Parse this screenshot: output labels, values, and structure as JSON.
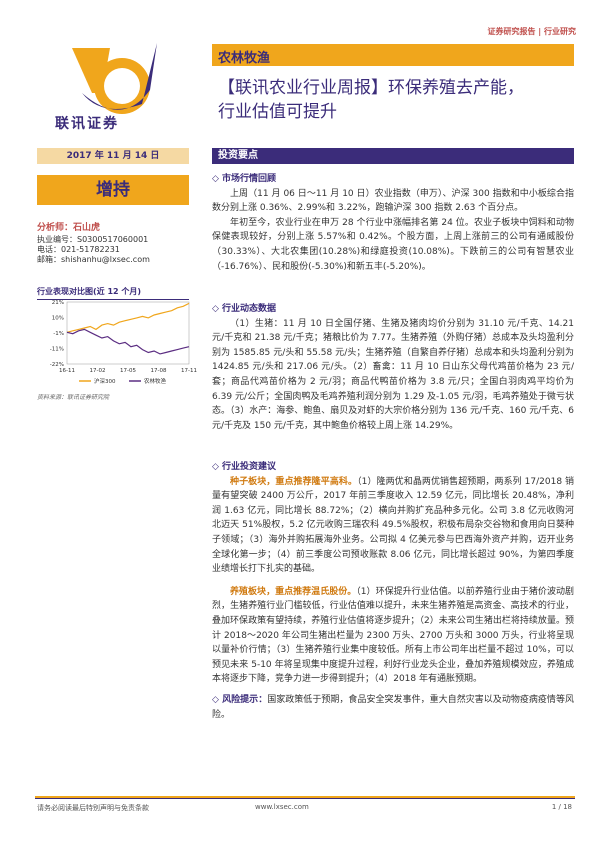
{
  "header": {
    "tag": "证券研究报告 | 行业研究",
    "sector": "农林牧渔",
    "title_line1": "【联讯农业行业周报】环保养殖去产能，",
    "title_line2": "行业估值可提升"
  },
  "brand": {
    "name": "联讯证券"
  },
  "sidebar": {
    "date": "2017 年 11 月 14 日",
    "rating": "增持",
    "analyst": "分析师：石山虎",
    "cert": "执业编号：S0300517060001",
    "phone": "电话：021-51782231",
    "email": "邮箱：shishanhu@lxsec.com",
    "chart_title": "行业表现对比图(近 12 个月)",
    "source": "资料来源：联讯证券研究院"
  },
  "chart_data": {
    "type": "line",
    "x_ticks": [
      "16-11",
      "17-02",
      "17-05",
      "17-08",
      "17-11"
    ],
    "y_ticks": [
      "21%",
      "10%",
      "-1%",
      "-11%",
      "-22%"
    ],
    "ylim": [
      -22,
      21
    ],
    "series": [
      {
        "name": "沪深300",
        "color": "#f0a61c",
        "values": [
          0,
          1,
          2,
          3,
          4,
          2,
          5,
          6,
          5,
          7,
          8,
          9,
          10,
          11,
          10,
          12,
          13,
          14,
          15,
          17,
          18,
          20
        ]
      },
      {
        "name": "农林牧渔",
        "color": "#5b2d82",
        "values": [
          0,
          -1,
          1,
          2,
          0,
          -2,
          -4,
          -3,
          -6,
          -8,
          -7,
          -10,
          -9,
          -12,
          -14,
          -13,
          -15,
          -14,
          -13,
          -12,
          -11,
          -10
        ]
      }
    ]
  },
  "section_title": "投资要点",
  "market": {
    "heading": "◇ 市场行情回顾",
    "p1": "上周（11 月 06 日～11 月 10 日）农业指数（申万）、沪深 300 指数和中小板综合指数分别上涨 0.36%、2.99%和 3.22%，跑输沪深 300 指数 2.63 个百分点。",
    "p2": "年初至今，农业行业在申万 28 个行业中涨幅排名第 24 位。农业子板块中饲料和动物保健表现较好，分别上涨 5.57%和 0.42%。个股方面，上周上涨前三的公司有通威股份（30.33%）、大北农集团(10.28%)和绿庭投资(10.08%)。下跌前三的公司有智慧农业（-16.76%）、民和股份(-5.30%)和新五丰(-5.20%)。"
  },
  "dynamics": {
    "heading": "◇ 行业动态数据",
    "p1": "（1）生猪：11 月 10 日全国仔猪、生猪及猪肉均价分别为 31.10 元/千克、14.21 元/千克和 21.38 元/千克；猪粮比价为 7.77。生猪养殖（外购仔猪）总成本及头均盈利分别为 1585.85 元/头和 55.58 元/头；生猪养殖（自繁自养仔猪）总成本和头均盈利分别为 1424.85 元/头和 217.06 元/头。（2）畜禽：11 月 10 日山东父母代鸡苗价格为 23 元/套；商品代鸡苗价格为 2 元/羽；商品代鸭苗价格为 3.8 元/只；全国白羽肉鸡平均价为 6.39 元/公斤；全国肉鸭及毛鸡养殖利润分别为 1.29 及-1.05 元/羽，毛鸡养殖处于微亏状态。（3）水产：海参、鲍鱼、扇贝及对虾的大宗价格分别为 136 元/千克、160 元/千克、6 元/千克及 150 元/千克，其中鲍鱼价格较上周上涨 14.29%。"
  },
  "advice": {
    "heading": "◇ 行业投资建议",
    "seed_lead": "种子板块，重点推荐隆平高科。",
    "seed_text": "（1）隆两优和晶两优销售超预期，两系列 17/2018 销量有望突破 2400 万公斤，2017 年前三季度收入 12.59 亿元，同比增长 20.48%，净利润 1.63 亿元，同比增长 88.72%；（2）横向并购扩充品种多元化。公司 3.8 亿元收购河北迈天 51%股权，5.2 亿元收购三瑞农科 49.5%股权，积极布局杂交谷物和食用向日葵种子领域；（3）海外并购拓展海外业务。公司拟 4 亿美元参与巴西海外资产并购，迈开业务全球化第一步；（4）前三季度公司预收账款 8.06 亿元，同比增长超过 90%，为第四季度业绩增长打下扎实的基础。",
    "breed_lead": "养殖板块，重点推荐温氏股份。",
    "breed_text": "（1）环保提升行业估值。以前养殖行业由于猪价波动剧烈，生猪养殖行业门槛较低，行业估值难以提升，未来生猪养殖是高资金、高技术的行业，叠加环保政策有望持续，养殖行业估值将逐步提升；（2）未来公司生猪出栏将持续放量。预计 2018～2020 年公司生猪出栏量为 2300 万头、2700 万头和 3000 万头，行业将呈现以量补价行情；（3）生猪养殖行业集中度较低。所有上市公司年出栏量不超过 10%，可以预见未来 5-10 年将呈现集中度提升过程，利好行业龙头企业，叠加养殖规模效应，养殖成本将逐步下降，竞争力进一步得到提升；（4）2018 年有通胀预期。",
    "risk_lead": "◇ 风险提示：",
    "risk_text": "国家政策低于预期，食品安全突发事件，重大自然灾害以及动物疫病疫情等风险。"
  },
  "footer": {
    "left": "请务必阅读最后特别声明与免责条款",
    "center": "www.lxsec.com",
    "page": "1 / 18"
  }
}
